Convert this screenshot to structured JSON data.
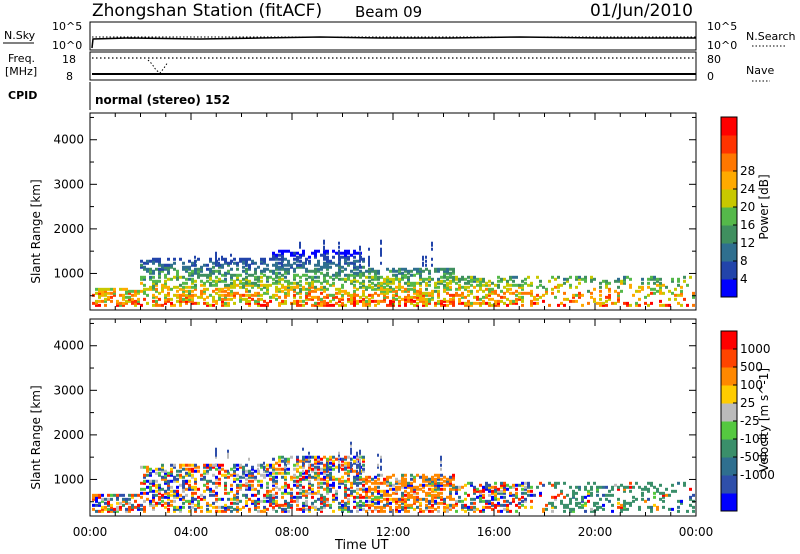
{
  "header": {
    "station": "Zhongshan Station (fitACF)",
    "beam": "Beam 09",
    "date": "01/Jun/2010"
  },
  "noise_panel": {
    "left_label": "N.Sky",
    "right_label": "N.Search",
    "left_ticks": [
      "10^5",
      "10^0"
    ],
    "right_ticks": [
      "10^5",
      "10^0"
    ]
  },
  "freq_panel": {
    "left_label_1": "Freq.",
    "left_label_2": "[MHz]",
    "right_label": "Nave",
    "left_ticks": [
      "18",
      "8"
    ],
    "right_ticks": [
      "80",
      "0"
    ]
  },
  "cpid_panel": {
    "label": "CPID",
    "mode": "normal (stereo) 152"
  },
  "colors": {
    "power": [
      "#0000ff",
      "#2244aa",
      "#2f6f8f",
      "#3f8f5f",
      "#55b84a",
      "#c8c800",
      "#ffaa00",
      "#ff7700",
      "#ff3300",
      "#ff0000"
    ],
    "velocity": [
      "#0000ff",
      "#2f4faa",
      "#2f6f8f",
      "#3a8f6a",
      "#55c840",
      "#bbbbbb",
      "#ffcc00",
      "#ff8800",
      "#ff4400",
      "#ff0000"
    ]
  },
  "chart_data": [
    {
      "type": "heatmap",
      "title": "",
      "xlabel": "Time UT",
      "ylabel": "Slant Range [km]",
      "xlim": [
        "00:00",
        "24:00"
      ],
      "ylim": [
        180,
        4600
      ],
      "x_ticks": [
        "00:00",
        "04:00",
        "08:00",
        "12:00",
        "16:00",
        "20:00",
        "00:00"
      ],
      "y_ticks": [
        "1000",
        "2000",
        "3000",
        "4000"
      ],
      "colorbar": {
        "label": "Power [dB]",
        "ticks": [
          "4",
          "8",
          "12",
          "16",
          "20",
          "24",
          "28"
        ],
        "range": [
          0,
          30
        ]
      },
      "grid": false
    },
    {
      "type": "heatmap",
      "title": "",
      "xlabel": "Time UT",
      "ylabel": "Slant Range [km]",
      "xlim": [
        "00:00",
        "24:00"
      ],
      "ylim": [
        180,
        4600
      ],
      "x_ticks": [
        "00:00",
        "04:00",
        "08:00",
        "12:00",
        "16:00",
        "20:00",
        "00:00"
      ],
      "y_ticks": [
        "1000",
        "2000",
        "3000",
        "4000"
      ],
      "colorbar": {
        "label": "Velocity [m s^-1]",
        "ticks": [
          "1000",
          "500",
          "100",
          "25",
          "-25",
          "-100",
          "-500",
          "-1000"
        ],
        "range": [
          -1000,
          1000
        ]
      },
      "grid": false
    }
  ],
  "x_axis": {
    "title": "Time UT",
    "ticks": [
      "00:00",
      "04:00",
      "08:00",
      "12:00",
      "16:00",
      "20:00",
      "00:00"
    ]
  }
}
